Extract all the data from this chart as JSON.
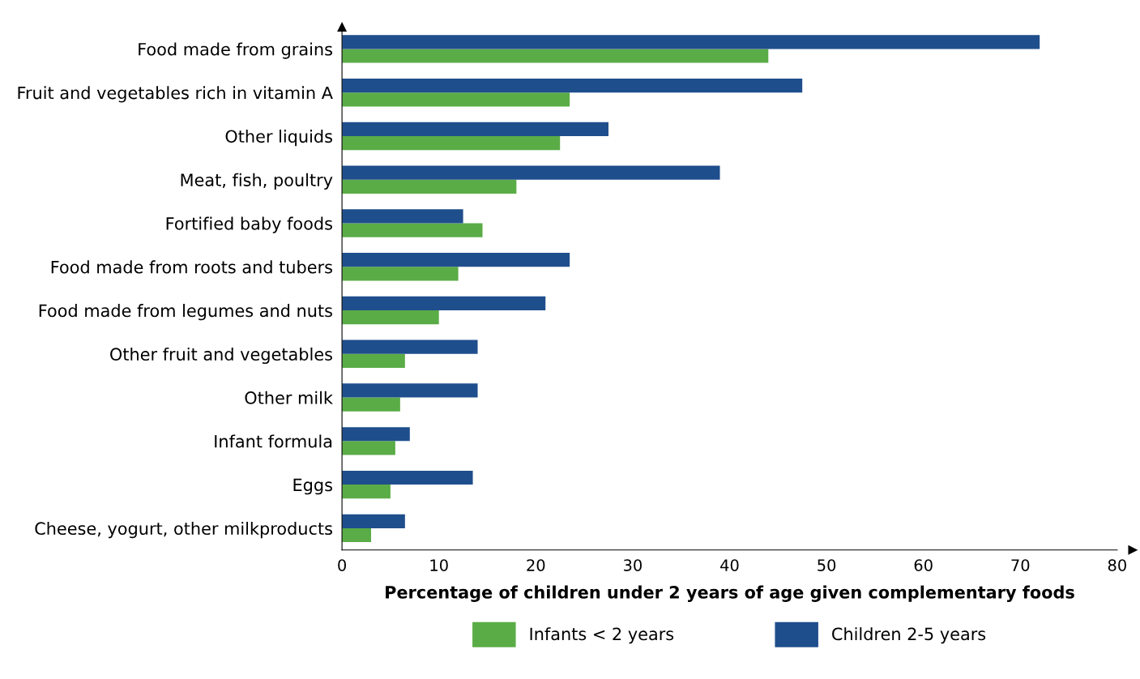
{
  "chart_data": {
    "type": "bar",
    "orientation": "horizontal",
    "xlabel": "Percentage of children under 2 years of age given complementary foods",
    "categories": [
      "Food made from grains",
      "Fruit and vegetables rich in vitamin A",
      "Other liquids",
      "Meat, fish, poultry",
      "Fortified baby foods",
      "Food made from roots and tubers",
      "Food made from legumes and nuts",
      "Other fruit and vegetables",
      "Other milk",
      "Infant formula",
      "Eggs",
      "Cheese, yogurt, other milkproducts"
    ],
    "series": [
      {
        "name": "Infants < 2 years",
        "color": "#5aac46",
        "values": [
          44,
          23.5,
          22.5,
          18,
          14.5,
          12,
          10,
          6.5,
          6,
          5.5,
          5,
          3
        ]
      },
      {
        "name": "Children 2-5 years",
        "color": "#1f4e8c",
        "values": [
          72,
          47.5,
          27.5,
          39,
          12.5,
          23.5,
          21,
          14,
          14,
          7,
          13.5,
          6.5
        ]
      }
    ],
    "xlim": [
      0,
      80
    ],
    "xticks": [
      0,
      10,
      20,
      30,
      40,
      50,
      60,
      70,
      80
    ],
    "grid": false,
    "legend": "bottom"
  }
}
